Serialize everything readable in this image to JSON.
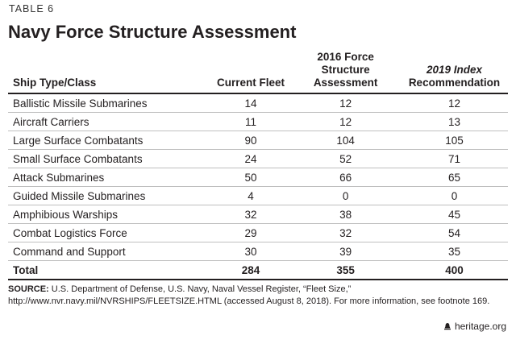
{
  "header": {
    "table_label": "TABLE 6",
    "title": "Navy Force Structure Assessment"
  },
  "table": {
    "columns": [
      "Ship Type/Class",
      "Current Fleet",
      "2016 Force Structure Assessment",
      "2019 Index Recommendation"
    ],
    "column_3_parts": {
      "italic": "2019 Index",
      "rest": "Recommendation"
    },
    "rows": [
      [
        "Ballistic Missile Submarines",
        "14",
        "12",
        "12"
      ],
      [
        "Aircraft Carriers",
        "11",
        "12",
        "13"
      ],
      [
        "Large Surface Combatants",
        "90",
        "104",
        "105"
      ],
      [
        "Small Surface Combatants",
        "24",
        "52",
        "71"
      ],
      [
        "Attack Submarines",
        "50",
        "66",
        "65"
      ],
      [
        "Guided Missile Submarines",
        "4",
        "0",
        "0"
      ],
      [
        "Amphibious Warships",
        "32",
        "38",
        "45"
      ],
      [
        "Combat Logistics Force",
        "29",
        "32",
        "54"
      ],
      [
        "Command and Support",
        "30",
        "39",
        "35"
      ]
    ],
    "total": [
      "Total",
      "284",
      "355",
      "400"
    ]
  },
  "source": {
    "label": "SOURCE:",
    "text": "U.S. Department of Defense, U.S. Navy, Naval Vessel Register, “Fleet Size,” http://www.nvr.navy.mil/NVRSHIPS/FLEETSIZE.HTML (accessed August 8, 2018). For more information, see footnote 169."
  },
  "footer": {
    "logo_text": "heritage.org",
    "logo_icon": "bell-icon"
  }
}
